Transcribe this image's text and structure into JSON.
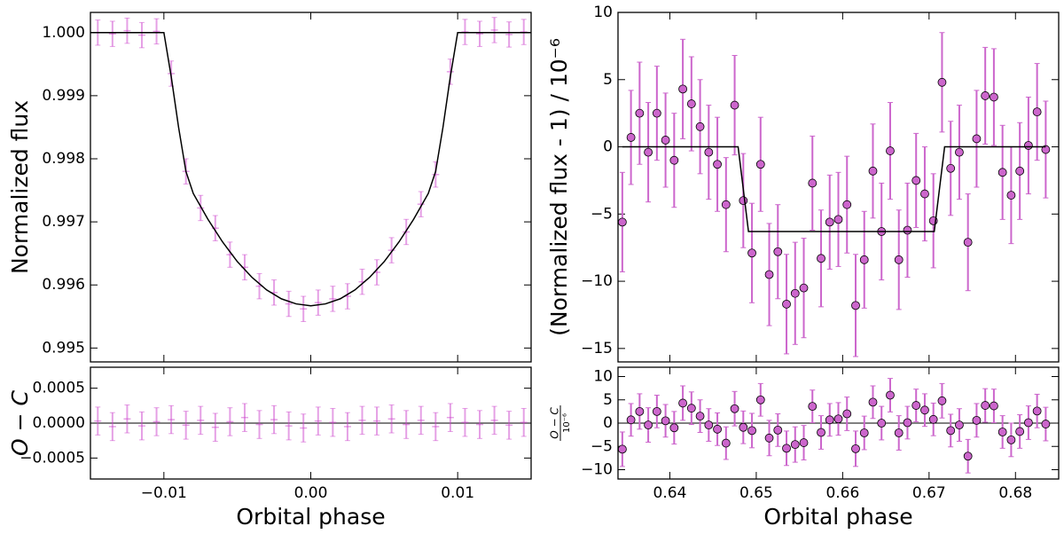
{
  "chart_data": [
    {
      "type": "scatter",
      "ylabel": "Normalized flux",
      "xlim": [
        -0.015,
        0.015
      ],
      "ylim": [
        0.99478,
        1.00032
      ],
      "xticks": [
        -0.01,
        0,
        0.01
      ],
      "yticks": [
        0.995,
        0.996,
        0.997,
        0.998,
        0.999,
        {
          "value": 1,
          "label": "1.000"
        }
      ],
      "series": [
        {
          "color": "#cc44cc",
          "marker": "none",
          "error": 0.0002,
          "x": [
            -0.0145,
            -0.0135,
            -0.0125,
            -0.0115,
            -0.0105,
            -0.0095,
            -0.0085,
            -0.0075,
            -0.0065,
            -0.0055,
            -0.0045,
            -0.0035,
            -0.0025,
            -0.0015,
            -0.0005,
            0.0005,
            0.0015,
            0.0025,
            0.0035,
            0.0045,
            0.0055,
            0.0065,
            0.0075,
            0.0085,
            0.0095,
            0.0105,
            0.0115,
            0.0125,
            0.0135,
            0.0145
          ],
          "values": [
            1.0,
            0.99998,
            1.00003,
            0.99996,
            1.00002,
            0.99935,
            0.9978,
            0.99722,
            0.9969,
            0.99648,
            0.99628,
            0.99598,
            0.99588,
            0.9957,
            0.99562,
            0.99572,
            0.99578,
            0.99582,
            0.99605,
            0.9962,
            0.99655,
            0.99684,
            0.99728,
            0.99775,
            0.99938,
            1.00001,
            0.99998,
            1.00004,
            0.99997,
            1.00001
          ]
        },
        {
          "color": "#000000",
          "marker": "line",
          "x": [
            -0.015,
            -0.01,
            -0.0095,
            -0.009,
            -0.0085,
            -0.008,
            -0.007,
            -0.006,
            -0.005,
            -0.004,
            -0.003,
            -0.002,
            -0.001,
            0,
            0.001,
            0.002,
            0.003,
            0.004,
            0.005,
            0.006,
            0.007,
            0.008,
            0.0085,
            0.009,
            0.0095,
            0.01,
            0.015
          ],
          "values": [
            1.0,
            1.0,
            0.9993,
            0.9985,
            0.9978,
            0.99745,
            0.99704,
            0.99668,
            0.99637,
            0.99612,
            0.99592,
            0.99578,
            0.9957,
            0.99567,
            0.9957,
            0.99578,
            0.99592,
            0.99612,
            0.99637,
            0.99668,
            0.99704,
            0.99745,
            0.9978,
            0.9985,
            0.9993,
            1.0,
            1.0
          ]
        }
      ]
    },
    {
      "type": "scatter",
      "ylabel": "O − C",
      "xlabel": "Orbital phase",
      "xlim": [
        -0.015,
        0.015
      ],
      "ylim": [
        -0.0008,
        0.0008
      ],
      "xticks": [
        {
          "value": -0.01,
          "label": "−0.01"
        },
        {
          "value": 0,
          "label": "0.00"
        },
        0.01
      ],
      "yticks": [
        {
          "value": -0.0005,
          "label": "−0.0005"
        },
        {
          "value": 0,
          "label": "0.0000"
        },
        0.0005
      ],
      "reference_line": 0,
      "series": [
        {
          "color": "#cc44cc",
          "marker": "none",
          "error": 0.0002,
          "x": [
            -0.0145,
            -0.0135,
            -0.0125,
            -0.0115,
            -0.0105,
            -0.0095,
            -0.0085,
            -0.0075,
            -0.0065,
            -0.0055,
            -0.0045,
            -0.0035,
            -0.0025,
            -0.0015,
            -0.0005,
            0.0005,
            0.0015,
            0.0025,
            0.0035,
            0.0045,
            0.0055,
            0.0065,
            0.0075,
            0.0085,
            0.0095,
            0.0105,
            0.0115,
            0.0125,
            0.0135,
            0.0145
          ],
          "values": [
            3e-05,
            -5e-05,
            6e-05,
            -4e-05,
            2e-05,
            5e-05,
            -3e-05,
            4e-05,
            -6e-05,
            2e-05,
            8e-05,
            -2e-05,
            5e-05,
            -4e-05,
            -7e-05,
            3e-05,
            1e-05,
            -5e-05,
            4e-05,
            3e-05,
            6e-05,
            -2e-05,
            4e-05,
            -5e-05,
            8e-05,
            1e-05,
            -2e-05,
            4e-05,
            -3e-05,
            1e-05
          ]
        }
      ]
    },
    {
      "type": "scatter",
      "ylabel": "(Normalized flux - 1) / 10⁻⁶",
      "xlim": [
        0.634,
        0.685
      ],
      "ylim": [
        -16,
        10
      ],
      "xticks": [
        0.64,
        0.65,
        0.66,
        0.67,
        0.68
      ],
      "yticks": [
        {
          "value": -15,
          "label": "−15"
        },
        {
          "value": -10,
          "label": "−10"
        },
        {
          "value": -5,
          "label": "−5"
        },
        0,
        5,
        10
      ],
      "series": [
        {
          "color": "#cc66cc",
          "marker": "o",
          "x": [
            0.6345,
            0.6355,
            0.6365,
            0.6375,
            0.6385,
            0.6395,
            0.6405,
            0.6415,
            0.6425,
            0.6435,
            0.6445,
            0.6455,
            0.6465,
            0.6475,
            0.6485,
            0.6495,
            0.6505,
            0.6515,
            0.6525,
            0.6535,
            0.6545,
            0.6555,
            0.6565,
            0.6575,
            0.6585,
            0.6595,
            0.6605,
            0.6615,
            0.6625,
            0.6635,
            0.6645,
            0.6655,
            0.6665,
            0.6675,
            0.6685,
            0.6695,
            0.6705,
            0.6715,
            0.6725,
            0.6735,
            0.6745,
            0.6755,
            0.6765,
            0.6775,
            0.6785,
            0.6795,
            0.6805,
            0.6815,
            0.6825,
            0.6835
          ],
          "values": [
            -5.6,
            0.7,
            2.5,
            -0.4,
            2.5,
            0.5,
            -1.0,
            4.3,
            3.2,
            1.5,
            -0.4,
            -1.3,
            -4.3,
            3.1,
            -4.0,
            -7.9,
            -1.3,
            -9.5,
            -7.8,
            -11.7,
            -10.9,
            -10.5,
            -2.7,
            -8.3,
            -5.6,
            -5.4,
            -4.3,
            -11.8,
            -8.4,
            -1.8,
            -6.3,
            -0.3,
            -8.4,
            -6.2,
            -2.5,
            -3.5,
            -5.5,
            4.8,
            -1.6,
            -0.4,
            -7.1,
            0.6,
            3.8,
            3.7,
            -1.9,
            -3.6,
            -1.8,
            0.1,
            2.6,
            -0.2
          ],
          "errors": [
            3.7,
            3.5,
            3.8,
            3.7,
            3.5,
            3.5,
            3.5,
            3.7,
            3.5,
            3.5,
            3.5,
            3.5,
            3.5,
            3.7,
            3.5,
            3.7,
            3.5,
            3.8,
            3.5,
            3.7,
            3.8,
            3.7,
            3.5,
            3.6,
            3.5,
            3.5,
            3.6,
            3.8,
            3.6,
            3.5,
            3.6,
            3.6,
            3.7,
            3.5,
            3.5,
            3.5,
            3.5,
            3.7,
            3.5,
            3.5,
            3.6,
            3.6,
            3.6,
            3.6,
            3.5,
            3.6,
            3.6,
            3.6,
            3.6,
            3.6
          ]
        },
        {
          "color": "#000000",
          "marker": "line",
          "x": [
            0.6345,
            0.6479,
            0.6491,
            0.6706,
            0.6718,
            0.6835
          ],
          "values": [
            0,
            0,
            -6.3,
            -6.3,
            0,
            0
          ]
        }
      ]
    },
    {
      "type": "scatter",
      "ylabel": [
        "O − C",
        "10⁻⁶"
      ],
      "xlabel": "Orbital phase",
      "xlim": [
        0.634,
        0.685
      ],
      "ylim": [
        -12,
        12
      ],
      "xticks": [
        0.64,
        0.65,
        0.66,
        0.67,
        0.68
      ],
      "yticks": [
        {
          "value": -10,
          "label": "−10"
        },
        {
          "value": -5,
          "label": "−5"
        },
        0,
        5,
        10
      ],
      "reference_line": 0,
      "series": [
        {
          "color": "#cc66cc",
          "marker": "o",
          "x": [
            0.6345,
            0.6355,
            0.6365,
            0.6375,
            0.6385,
            0.6395,
            0.6405,
            0.6415,
            0.6425,
            0.6435,
            0.6445,
            0.6455,
            0.6465,
            0.6475,
            0.6485,
            0.6495,
            0.6505,
            0.6515,
            0.6525,
            0.6535,
            0.6545,
            0.6555,
            0.6565,
            0.6575,
            0.6585,
            0.6595,
            0.6605,
            0.6615,
            0.6625,
            0.6635,
            0.6645,
            0.6655,
            0.6665,
            0.6675,
            0.6685,
            0.6695,
            0.6705,
            0.6715,
            0.6725,
            0.6735,
            0.6745,
            0.6755,
            0.6765,
            0.6775,
            0.6785,
            0.6795,
            0.6805,
            0.6815,
            0.6825,
            0.6835
          ],
          "values": [
            -5.6,
            0.7,
            2.5,
            -0.4,
            2.5,
            0.5,
            -1.0,
            4.3,
            3.2,
            1.5,
            -0.4,
            -1.3,
            -4.3,
            3.1,
            -0.9,
            -1.6,
            5.0,
            -3.2,
            -1.5,
            -5.4,
            -4.6,
            -4.2,
            3.6,
            -2.0,
            0.7,
            0.9,
            2.0,
            -5.5,
            -2.1,
            4.5,
            0.0,
            6.0,
            -2.1,
            0.1,
            3.8,
            2.8,
            0.8,
            4.8,
            -1.6,
            -0.4,
            -7.1,
            0.6,
            3.8,
            3.7,
            -1.9,
            -3.6,
            -1.8,
            0.1,
            2.6,
            -0.2
          ],
          "errors": [
            3.7,
            3.5,
            3.8,
            3.7,
            3.5,
            3.5,
            3.5,
            3.7,
            3.5,
            3.5,
            3.5,
            3.5,
            3.5,
            3.7,
            3.5,
            3.7,
            3.5,
            3.8,
            3.5,
            3.7,
            3.8,
            3.7,
            3.5,
            3.6,
            3.5,
            3.5,
            3.6,
            3.8,
            3.6,
            3.5,
            3.6,
            3.6,
            3.7,
            3.5,
            3.5,
            3.5,
            3.5,
            3.7,
            3.5,
            3.5,
            3.6,
            3.6,
            3.6,
            3.6,
            3.5,
            3.6,
            3.6,
            3.6,
            3.6,
            3.6
          ]
        }
      ]
    }
  ]
}
